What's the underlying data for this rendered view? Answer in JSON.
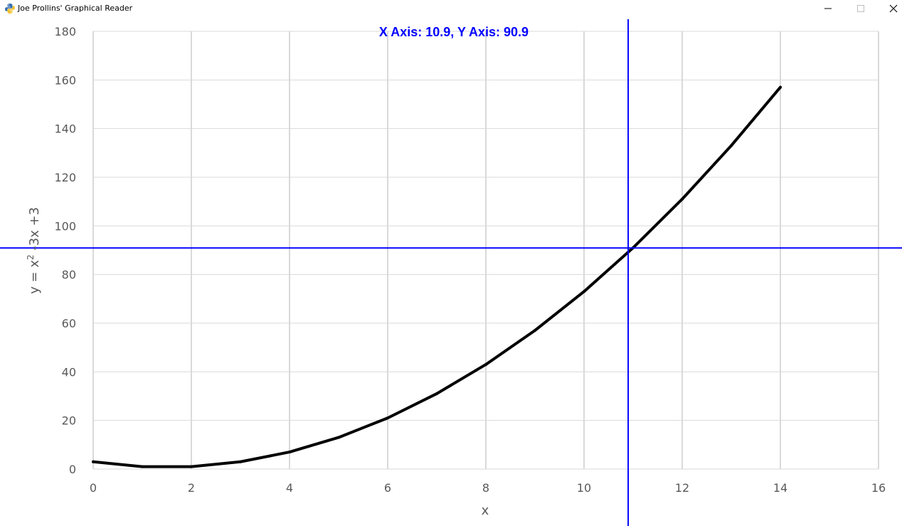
{
  "window": {
    "title": "Joe Prollins' Graphical Reader",
    "icon": "python-snake-icon"
  },
  "readout": {
    "text": "X Axis: 10.9, Y Axis: 90.9",
    "x": 10.9,
    "y": 90.9,
    "color": "#0000ff"
  },
  "chart_data": {
    "type": "line",
    "title": "",
    "xlabel": "x",
    "ylabel": "y = x² -3x +3",
    "xlim": [
      0,
      16
    ],
    "ylim": [
      0,
      180
    ],
    "xticks": [
      "0",
      "2",
      "4",
      "6",
      "8",
      "10",
      "12",
      "14",
      "16"
    ],
    "yticks": [
      "0",
      "20",
      "40",
      "60",
      "80",
      "100",
      "120",
      "140",
      "160",
      "180"
    ],
    "grid": true,
    "x": [
      0,
      1,
      2,
      3,
      4,
      5,
      6,
      7,
      8,
      9,
      10,
      11,
      12,
      13,
      14
    ],
    "series": [
      {
        "values": [
          3,
          1,
          1,
          3,
          7,
          13,
          21,
          31,
          43,
          57,
          73,
          91,
          111,
          133,
          157
        ],
        "color": "#000000"
      }
    ]
  }
}
